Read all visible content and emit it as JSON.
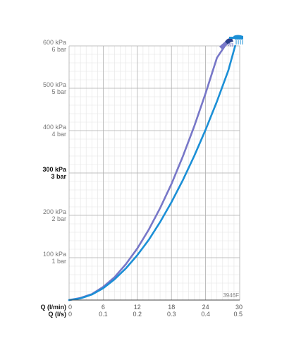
{
  "chart_data": {
    "type": "line",
    "code": "3946F",
    "x_axis_primary": {
      "name": "Q (l/min)",
      "ticks": [
        "0",
        "6",
        "12",
        "18",
        "24",
        "30"
      ],
      "range": [
        0,
        30
      ]
    },
    "x_axis_secondary": {
      "name": "Q (l/s)",
      "ticks": [
        "0",
        "0.1",
        "0.2",
        "0.3",
        "0.4",
        "0.5"
      ]
    },
    "y_axis": {
      "range": [
        0,
        600
      ],
      "ticks": [
        {
          "value": 100,
          "kpa": "100 kPa",
          "bar": "1 bar",
          "bold": false
        },
        {
          "value": 200,
          "kpa": "200 kPa",
          "bar": "2 bar",
          "bold": false
        },
        {
          "value": 300,
          "kpa": "300 kPa",
          "bar": "3 bar",
          "bold": true
        },
        {
          "value": 400,
          "kpa": "400 kPa",
          "bar": "4 bar",
          "bold": false
        },
        {
          "value": 500,
          "kpa": "500 kPa",
          "bar": "5 bar",
          "bold": false
        },
        {
          "value": 600,
          "kpa": "600 kPa",
          "bar": "6 bar",
          "bold": false
        }
      ]
    },
    "grid": true,
    "series": [
      {
        "icon": "hand-shower-icon",
        "color": "#7777c8",
        "x": [
          0,
          2,
          4,
          6,
          8,
          10,
          12,
          14,
          16,
          18,
          20,
          22,
          24,
          26,
          27.4
        ],
        "y": [
          0,
          5,
          14,
          31,
          54,
          85,
          122,
          166,
          217,
          274,
          339,
          410,
          488,
          572,
          600
        ]
      },
      {
        "icon": "head-shower-icon",
        "color": "#1b8fd6",
        "x": [
          0,
          2,
          4,
          6,
          8,
          10,
          12,
          14,
          16,
          18,
          20,
          22,
          24,
          26,
          28,
          29.2
        ],
        "y": [
          0,
          4,
          13,
          28,
          49,
          75,
          106,
          142,
          184,
          231,
          283,
          340,
          402,
          469,
          542,
          600
        ]
      }
    ]
  }
}
